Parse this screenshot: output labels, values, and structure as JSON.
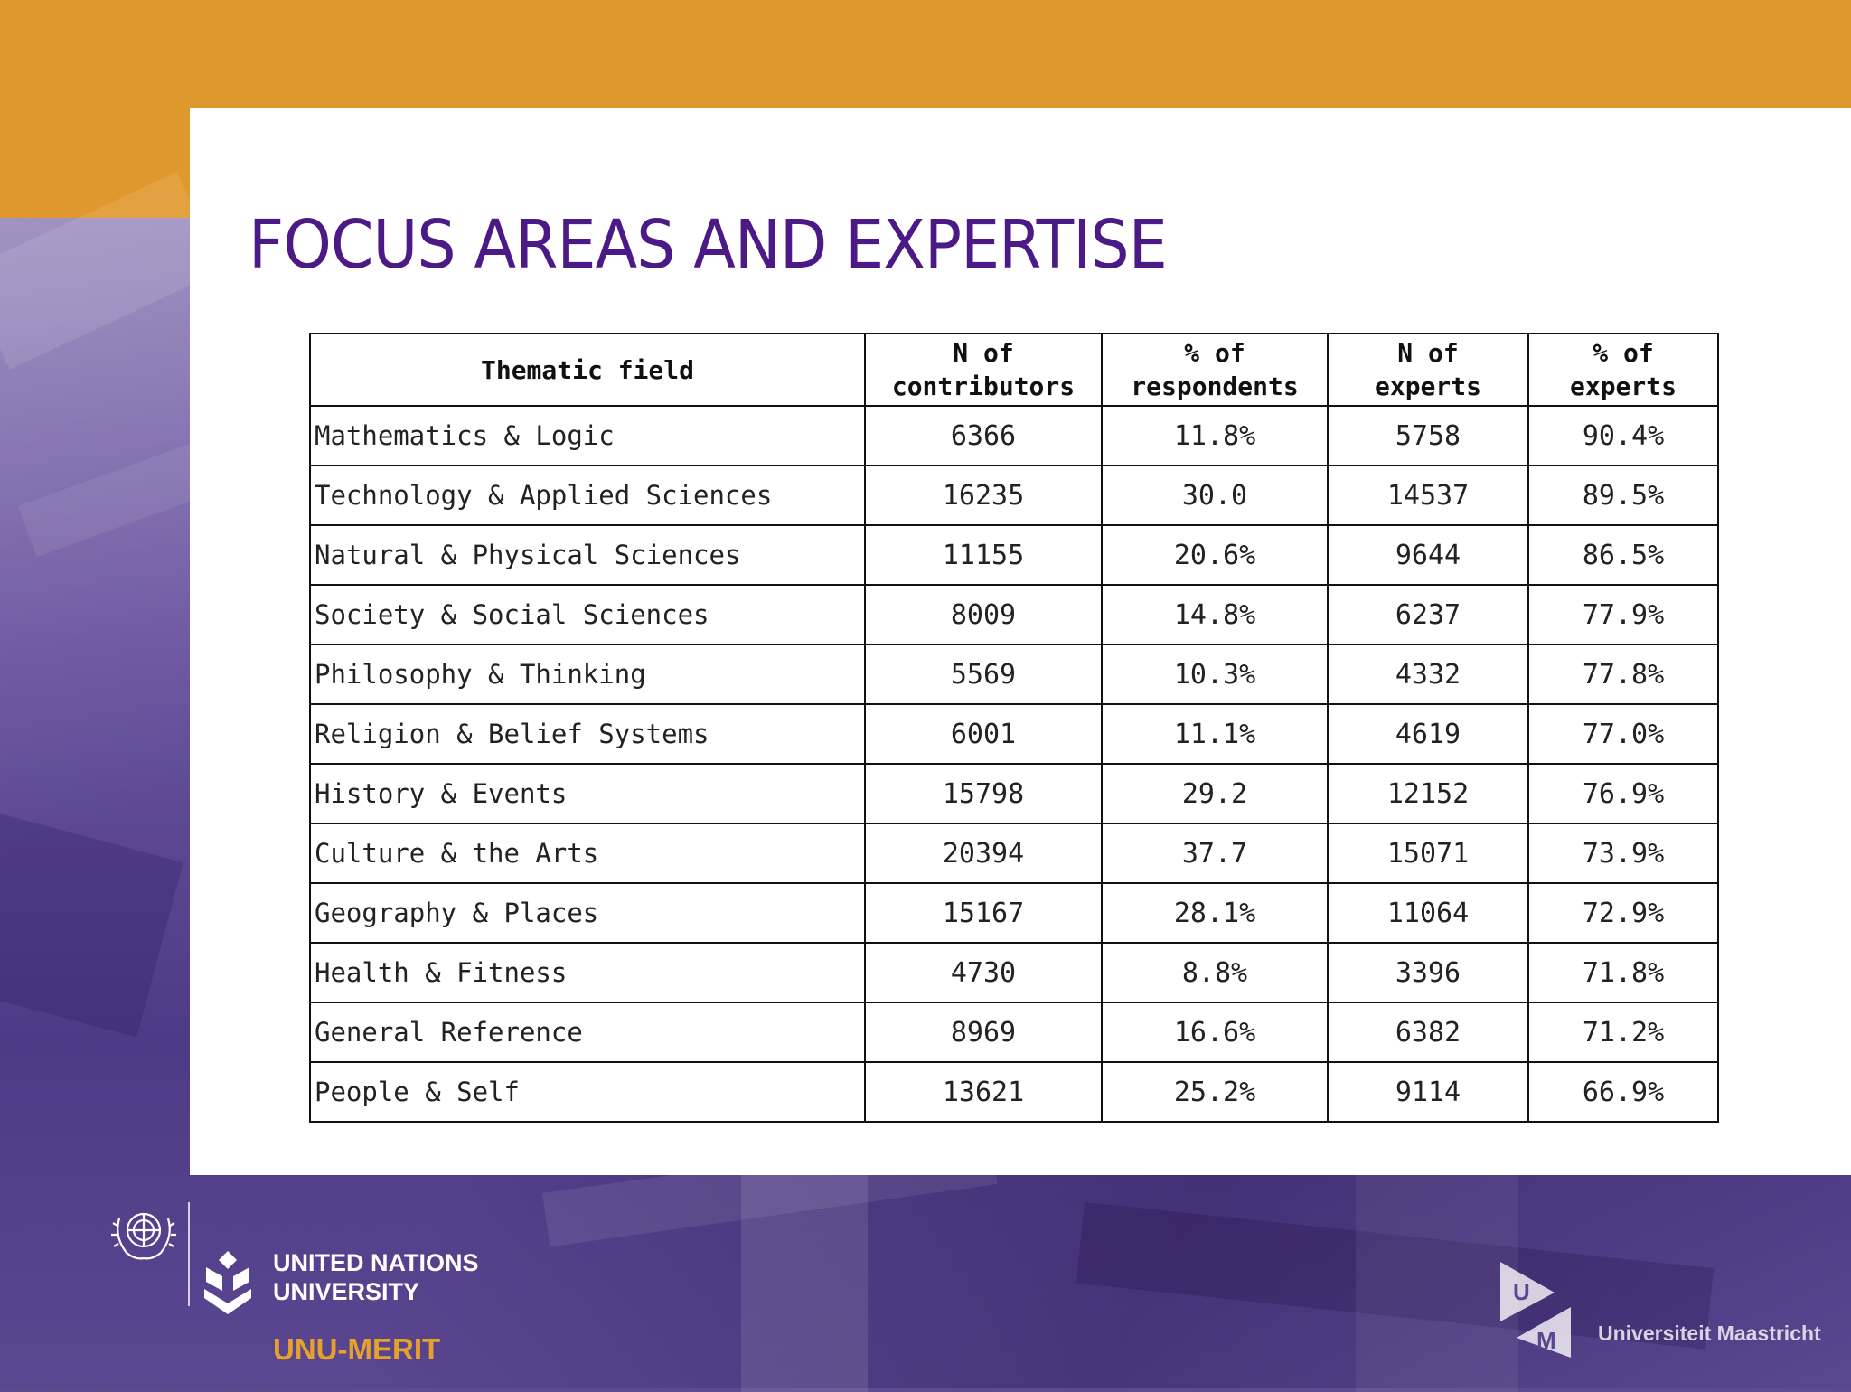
{
  "slide": {
    "title": "FOCUS AREAS AND EXPERTISE"
  },
  "table": {
    "headers": {
      "field": "Thematic field",
      "n_contributors": [
        "N of",
        "contributors"
      ],
      "pct_respondents": [
        "% of",
        "respondents"
      ],
      "n_experts": [
        "N of",
        "experts"
      ],
      "pct_experts": [
        "% of",
        "experts"
      ]
    },
    "rows": [
      {
        "field": "Mathematics & Logic",
        "n_contributors": "6366",
        "pct_respondents": "11.8%",
        "n_experts": "5758",
        "pct_experts": "90.4%"
      },
      {
        "field": "Technology & Applied Sciences",
        "n_contributors": "16235",
        "pct_respondents": "30.0",
        "n_experts": "14537",
        "pct_experts": "89.5%"
      },
      {
        "field": "Natural & Physical Sciences",
        "n_contributors": "11155",
        "pct_respondents": "20.6%",
        "n_experts": "9644",
        "pct_experts": "86.5%"
      },
      {
        "field": "Society & Social Sciences",
        "n_contributors": "8009",
        "pct_respondents": "14.8%",
        "n_experts": "6237",
        "pct_experts": "77.9%"
      },
      {
        "field": "Philosophy & Thinking",
        "n_contributors": "5569",
        "pct_respondents": "10.3%",
        "n_experts": "4332",
        "pct_experts": "77.8%"
      },
      {
        "field": "Religion & Belief Systems",
        "n_contributors": "6001",
        "pct_respondents": "11.1%",
        "n_experts": "4619",
        "pct_experts": "77.0%"
      },
      {
        "field": "History & Events",
        "n_contributors": "15798",
        "pct_respondents": "29.2",
        "n_experts": "12152",
        "pct_experts": "76.9%"
      },
      {
        "field": "Culture & the Arts",
        "n_contributors": "20394",
        "pct_respondents": "37.7",
        "n_experts": "15071",
        "pct_experts": "73.9%"
      },
      {
        "field": "Geography & Places",
        "n_contributors": "15167",
        "pct_respondents": "28.1%",
        "n_experts": "11064",
        "pct_experts": "72.9%"
      },
      {
        "field": "Health & Fitness",
        "n_contributors": "4730",
        "pct_respondents": "8.8%",
        "n_experts": "3396",
        "pct_experts": "71.8%"
      },
      {
        "field": "General Reference",
        "n_contributors": "8969",
        "pct_respondents": "16.6%",
        "n_experts": "6382",
        "pct_experts": "71.2%"
      },
      {
        "field": "People & Self",
        "n_contributors": "13621",
        "pct_respondents": "25.2%",
        "n_experts": "9114",
        "pct_experts": "66.9%"
      }
    ]
  },
  "footer": {
    "unu_name_line1": "UNITED NATIONS",
    "unu_name_line2": "UNIVERSITY",
    "unu_merit": "UNU-MERIT",
    "um_letter_u": "U",
    "um_letter_m": "M",
    "um_name": "Universiteit Maastricht",
    "icons": [
      "un-emblem-icon",
      "unu-logo-icon",
      "um-logo-icon"
    ]
  },
  "colors": {
    "orange_band": "#df982d",
    "title_purple": "#4b1a86",
    "background_purple": "#5e4a8e",
    "merit_orange": "#e6a12c"
  }
}
